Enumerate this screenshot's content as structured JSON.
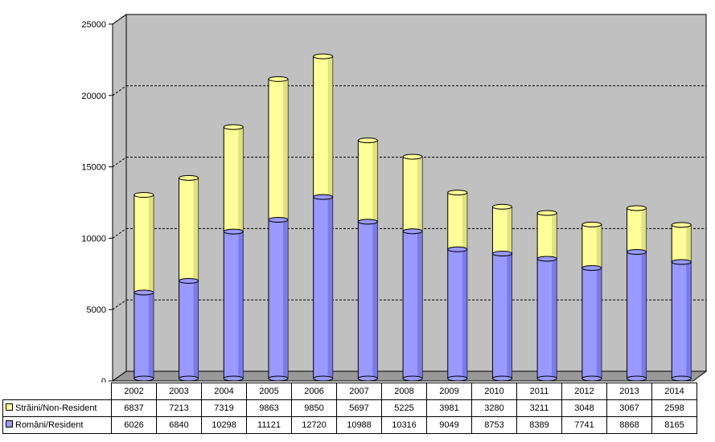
{
  "chart_data": {
    "type": "bar",
    "stacked": true,
    "style": "3d-cylinder",
    "categories": [
      "2002",
      "2003",
      "2004",
      "2005",
      "2006",
      "2007",
      "2008",
      "2009",
      "2010",
      "2011",
      "2012",
      "2013",
      "2014"
    ],
    "series": [
      {
        "name": "Români/Resident",
        "color": "#9999ff",
        "values": [
          6026,
          6840,
          10298,
          11121,
          12720,
          10988,
          10316,
          9049,
          8753,
          8389,
          7741,
          8868,
          8165
        ]
      },
      {
        "name": "Străini/Non-Resident",
        "color": "#ffff99",
        "values": [
          6837,
          7213,
          7319,
          9863,
          9850,
          5697,
          5225,
          3981,
          3280,
          3211,
          3048,
          3067,
          2598
        ]
      }
    ],
    "ylim": [
      0,
      25000
    ],
    "yticks": [
      "0",
      "5000",
      "10000",
      "15000",
      "20000",
      "25000"
    ],
    "grid": true,
    "legend": "data table below chart"
  }
}
